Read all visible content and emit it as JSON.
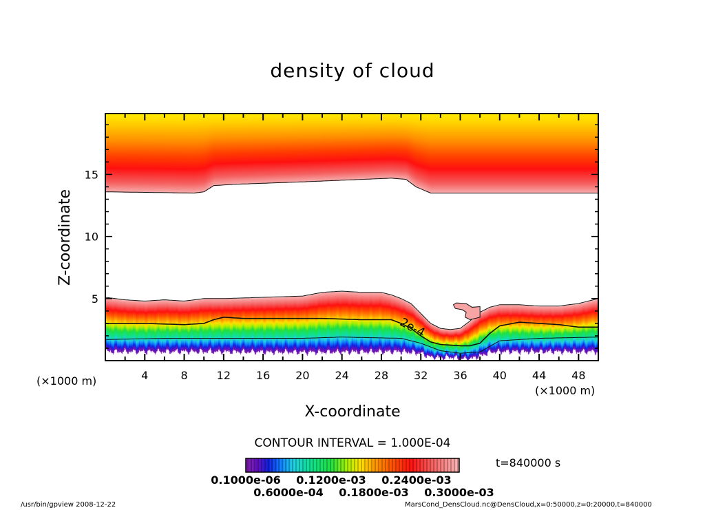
{
  "title": "density of cloud",
  "footer_left": "/usr/bin/gpview   2008-12-22",
  "footer_right": "MarsCond_DensCloud.nc@DensCloud,x=0:50000,z=0:20000,t=840000",
  "contour_interval": "CONTOUR INTERVAL = 1.000E-04",
  "time_label": "t=840000 s",
  "chart_data": {
    "type": "heatmap",
    "title": "density of cloud",
    "xlabel": "X-coordinate",
    "ylabel": "Z-coordinate",
    "x_unit": "(×1000 m)",
    "y_unit": "(×1000 m)",
    "xlim": [
      0,
      50
    ],
    "ylim": [
      0,
      19.9
    ],
    "x_ticks": [
      "4",
      "8",
      "12",
      "16",
      "20",
      "24",
      "28",
      "32",
      "36",
      "40",
      "44",
      "48"
    ],
    "y_ticks": [
      "5",
      "10",
      "15"
    ],
    "colorbar": {
      "labels": [
        "0.1000e-06",
        "0.6000e-04",
        "0.1200e-03",
        "0.1800e-03",
        "0.2400e-03",
        "0.3000e-03"
      ],
      "colors": [
        "#8020b0",
        "#1020e0",
        "#20d0e0",
        "#20e040",
        "#ffe000",
        "#ff5a00",
        "#ff1010",
        "#f8b0b0"
      ]
    },
    "upper_cloud_base": {
      "x": [
        0,
        9,
        10,
        11,
        13,
        20,
        26,
        29,
        30.5,
        31.5,
        33,
        40,
        50
      ],
      "z": [
        13.6,
        13.5,
        13.6,
        14.1,
        14.2,
        14.4,
        14.6,
        14.7,
        14.6,
        14.0,
        13.5,
        13.5,
        13.5
      ]
    },
    "lower_cloud_top": {
      "x": [
        0,
        2,
        4,
        6,
        8,
        10,
        12,
        16,
        20,
        22,
        24,
        26,
        28,
        29,
        30,
        31,
        32,
        33,
        34,
        35,
        36,
        37,
        38,
        39,
        40,
        42,
        44,
        46,
        48,
        50
      ],
      "z": [
        5.1,
        4.9,
        4.8,
        4.9,
        4.8,
        5.0,
        5.0,
        5.1,
        5.2,
        5.5,
        5.6,
        5.5,
        5.5,
        5.3,
        5.0,
        4.6,
        3.8,
        3.0,
        2.6,
        2.5,
        2.6,
        3.2,
        3.9,
        4.3,
        4.5,
        4.5,
        4.4,
        4.4,
        4.6,
        5.0
      ]
    },
    "lower_cloud_hook": {
      "x": [
        35.3,
        35.6,
        36.6,
        37.2,
        38,
        38,
        37,
        36.5,
        36.6,
        36.2,
        35.5
      ],
      "z": [
        4.5,
        4.65,
        4.6,
        4.3,
        4.35,
        3.5,
        3.3,
        3.5,
        3.9,
        4.1,
        4.2
      ]
    },
    "lower_cloud_base": {
      "x": [
        0,
        10,
        20,
        30,
        32,
        33,
        34,
        35,
        36,
        37,
        38,
        39,
        40,
        50
      ],
      "z": [
        0.75,
        0.75,
        0.7,
        0.75,
        0.6,
        0.3,
        0.25,
        0.3,
        0.2,
        0.15,
        0.4,
        0.7,
        0.75,
        0.75
      ]
    },
    "contour_lines": [
      {
        "label": "2e-4",
        "x": [
          0,
          4,
          8,
          10,
          11,
          12,
          14,
          18,
          22,
          26,
          29,
          30,
          31,
          32,
          33,
          34,
          36,
          37,
          38,
          39,
          40,
          42,
          44,
          46,
          48,
          50
        ],
        "z": [
          3.0,
          3.0,
          2.9,
          3.0,
          3.3,
          3.5,
          3.4,
          3.4,
          3.4,
          3.3,
          3.3,
          3.0,
          2.6,
          2.0,
          1.5,
          1.3,
          1.2,
          1.2,
          1.4,
          2.2,
          2.8,
          3.1,
          3.0,
          2.9,
          2.7,
          2.7
        ]
      },
      {
        "label": "",
        "x": [
          0,
          6,
          10,
          14,
          20,
          24,
          30,
          32,
          34,
          36,
          38,
          40,
          44,
          50
        ],
        "z": [
          1.7,
          1.8,
          1.8,
          1.8,
          1.8,
          1.9,
          1.8,
          1.4,
          0.8,
          0.6,
          0.7,
          1.6,
          1.8,
          1.9
        ]
      }
    ]
  }
}
